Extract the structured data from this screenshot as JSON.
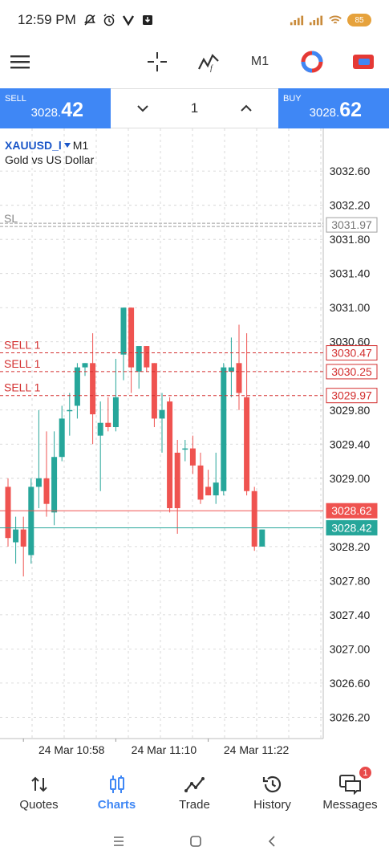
{
  "status_bar": {
    "time": "12:59 PM",
    "battery": "85"
  },
  "toolbar": {
    "timeframe": "M1",
    "icons": [
      "menu-icon",
      "crosshair-icon",
      "indicators-icon",
      "timeframe",
      "trading-signals-icon",
      "one-click-trading-icon"
    ]
  },
  "trade_panel": {
    "sell_label": "SELL",
    "sell_price_small": "3028.",
    "sell_price_big": "42",
    "buy_label": "BUY",
    "buy_price_small": "3028.",
    "buy_price_big": "62",
    "lot": "1"
  },
  "chart": {
    "symbol": "XAUUSD_l",
    "timeframe": "M1",
    "description": "Gold vs US Dollar",
    "sl_label": "SL",
    "colors": {
      "bull": "#26a69a",
      "bear": "#ef5350",
      "sell_line": "#d32f2f",
      "buy_price_line": "#ef5350",
      "bid_price_line": "#26a69a",
      "grid": "#d0d0d0"
    }
  },
  "chart_data": {
    "type": "candlestick",
    "ylim": [
      3025.95,
      3033.1
    ],
    "y_ticks": [
      "3032.60",
      "3032.20",
      "3031.80",
      "3031.40",
      "3031.00",
      "3030.60",
      "3029.80",
      "3029.40",
      "3029.00",
      "3028.20",
      "3027.80",
      "3027.40",
      "3027.00",
      "3026.60",
      "3026.20"
    ],
    "x_labels": [
      "24 Mar 10:58",
      "24 Mar 11:10",
      "24 Mar 11:22"
    ],
    "x_label_index": [
      2,
      14,
      26
    ],
    "candles": [
      {
        "o": 3028.9,
        "h": 3029.0,
        "l": 3028.2,
        "c": 3028.3
      },
      {
        "o": 3028.25,
        "h": 3028.55,
        "l": 3028.0,
        "c": 3028.4
      },
      {
        "o": 3028.4,
        "h": 3028.55,
        "l": 3027.85,
        "c": 3028.2
      },
      {
        "o": 3028.1,
        "h": 3029.0,
        "l": 3028.0,
        "c": 3028.9
      },
      {
        "o": 3028.9,
        "h": 3029.8,
        "l": 3028.65,
        "c": 3029.0
      },
      {
        "o": 3029.0,
        "h": 3029.55,
        "l": 3028.55,
        "c": 3028.7
      },
      {
        "o": 3028.6,
        "h": 3029.55,
        "l": 3028.45,
        "c": 3029.25
      },
      {
        "o": 3029.25,
        "h": 3029.85,
        "l": 3029.2,
        "c": 3029.7
      },
      {
        "o": 3029.8,
        "h": 3030.0,
        "l": 3029.5,
        "c": 3029.8
      },
      {
        "o": 3029.85,
        "h": 3030.35,
        "l": 3029.7,
        "c": 3030.3
      },
      {
        "o": 3030.3,
        "h": 3030.35,
        "l": 3030.2,
        "c": 3030.35
      },
      {
        "o": 3030.35,
        "h": 3030.7,
        "l": 3029.4,
        "c": 3029.75
      },
      {
        "o": 3029.5,
        "h": 3029.9,
        "l": 3028.85,
        "c": 3029.65
      },
      {
        "o": 3029.65,
        "h": 3029.95,
        "l": 3029.55,
        "c": 3029.6
      },
      {
        "o": 3029.6,
        "h": 3030.4,
        "l": 3029.55,
        "c": 3029.95
      },
      {
        "o": 3030.45,
        "h": 3031.0,
        "l": 3030.15,
        "c": 3031.0
      },
      {
        "o": 3031.0,
        "h": 3031.0,
        "l": 3030.0,
        "c": 3030.3
      },
      {
        "o": 3030.25,
        "h": 3030.5,
        "l": 3030.05,
        "c": 3030.55
      },
      {
        "o": 3030.55,
        "h": 3030.55,
        "l": 3030.25,
        "c": 3030.3
      },
      {
        "o": 3030.35,
        "h": 3030.35,
        "l": 3029.6,
        "c": 3029.7
      },
      {
        "o": 3029.7,
        "h": 3030.0,
        "l": 3029.3,
        "c": 3029.8
      },
      {
        "o": 3029.9,
        "h": 3029.95,
        "l": 3028.6,
        "c": 3028.65
      },
      {
        "o": 3029.3,
        "h": 3029.45,
        "l": 3028.35,
        "c": 3028.65
      },
      {
        "o": 3029.35,
        "h": 3029.45,
        "l": 3029.2,
        "c": 3029.35
      },
      {
        "o": 3029.35,
        "h": 3029.5,
        "l": 3029.05,
        "c": 3029.15
      },
      {
        "o": 3029.15,
        "h": 3029.3,
        "l": 3028.7,
        "c": 3028.75
      },
      {
        "o": 3028.9,
        "h": 3029.1,
        "l": 3028.8,
        "c": 3028.8
      },
      {
        "o": 3028.8,
        "h": 3029.3,
        "l": 3028.7,
        "c": 3028.95
      },
      {
        "o": 3028.85,
        "h": 3030.35,
        "l": 3028.8,
        "c": 3030.3
      },
      {
        "o": 3030.25,
        "h": 3030.65,
        "l": 3029.95,
        "c": 3030.3
      },
      {
        "o": 3030.35,
        "h": 3030.8,
        "l": 3029.8,
        "c": 3030.0
      },
      {
        "o": 3029.95,
        "h": 3030.7,
        "l": 3028.8,
        "c": 3028.85
      },
      {
        "o": 3028.85,
        "h": 3028.9,
        "l": 3028.15,
        "c": 3028.2
      },
      {
        "o": 3028.2,
        "h": 3028.4,
        "l": 3028.2,
        "c": 3028.4
      }
    ],
    "price_lines": [
      {
        "label": "SELL 1",
        "price": 3030.47,
        "tag": "3030.47",
        "kind": "sell"
      },
      {
        "label": "SELL 1",
        "price": 3030.25,
        "tag": "3030.25",
        "kind": "sell"
      },
      {
        "label": "SELL 1",
        "price": 3029.97,
        "tag": "3029.97",
        "kind": "sell"
      },
      {
        "label": "SL",
        "price": 3031.97,
        "tag": "3031.97",
        "kind": "sl"
      },
      {
        "label": "",
        "price": 3028.62,
        "tag": "3028.62",
        "kind": "ask"
      },
      {
        "label": "",
        "price": 3028.42,
        "tag": "3028.42",
        "kind": "bid"
      }
    ]
  },
  "bottom_nav": {
    "items": [
      {
        "label": "Quotes",
        "icon": "quotes-icon"
      },
      {
        "label": "Charts",
        "icon": "charts-icon"
      },
      {
        "label": "Trade",
        "icon": "trade-icon"
      },
      {
        "label": "History",
        "icon": "history-icon"
      },
      {
        "label": "Messages",
        "icon": "messages-icon"
      }
    ],
    "messages_badge": "1"
  }
}
